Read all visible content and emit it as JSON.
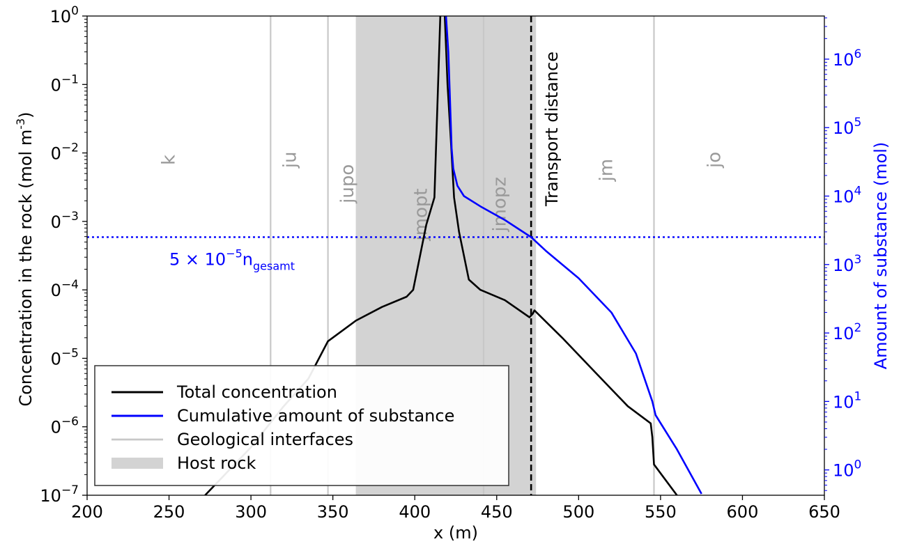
{
  "chart_data": {
    "type": "line",
    "title": "",
    "xlabel": "x (m)",
    "ylabel_left": "Concentration in the rock (mol m",
    "ylabel_left_sup": "-3",
    "ylabel_left_end": ")",
    "ylabel_right": "Amount of substance (mol)",
    "xlim": [
      200,
      650
    ],
    "x_ticks": [
      200,
      250,
      300,
      350,
      400,
      450,
      500,
      550,
      600,
      650
    ],
    "ylim_left_log10": [
      -7,
      0
    ],
    "y_left_ticks": [
      {
        "value": 0,
        "base": "10",
        "exp": "0"
      },
      {
        "value": -1,
        "base": "0",
        "exp": "−1"
      },
      {
        "value": -2,
        "base": "0",
        "exp": "−2"
      },
      {
        "value": -3,
        "base": "0",
        "exp": "−3"
      },
      {
        "value": -4,
        "base": "0",
        "exp": "−4"
      },
      {
        "value": -5,
        "base": "0",
        "exp": "−5"
      },
      {
        "value": -6,
        "base": "0",
        "exp": "−6"
      },
      {
        "value": -7,
        "base": "10",
        "exp": "−7"
      }
    ],
    "ylim_right_log10": [
      -0.37,
      6.63
    ],
    "y_right_ticks": [
      {
        "value": 0,
        "base": "10",
        "exp": "0"
      },
      {
        "value": 1,
        "base": "10",
        "exp": "1"
      },
      {
        "value": 2,
        "base": "10",
        "exp": "2"
      },
      {
        "value": 3,
        "base": "10",
        "exp": "3"
      },
      {
        "value": 4,
        "base": "10",
        "exp": "4"
      },
      {
        "value": 5,
        "base": "10",
        "exp": "5"
      },
      {
        "value": 6,
        "base": "10",
        "exp": "6"
      }
    ],
    "interfaces": [
      312,
      347,
      442,
      546
    ],
    "host_rock": [
      364,
      474
    ],
    "transport_distance": 471,
    "transport_label": "Transport distance",
    "threshold_log10_right": 3.4,
    "threshold_label": {
      "prefix": "5 × 10",
      "exp": "−5",
      "n": "n",
      "sub": "gesamt"
    },
    "layer_labels": [
      {
        "text": "k",
        "x": 250,
        "y": -2.1
      },
      {
        "text": "ju",
        "x": 324,
        "y": -2.1
      },
      {
        "text": "jupo",
        "x": 359,
        "y": -2.45
      },
      {
        "text": "jmopt",
        "x": 404,
        "y": -2.9
      },
      {
        "text": "jmopz",
        "x": 452,
        "y": -2.75
      },
      {
        "text": "jm",
        "x": 517,
        "y": -2.25
      },
      {
        "text": "jo",
        "x": 583,
        "y": -2.1
      }
    ],
    "series": [
      {
        "name": "Total concentration",
        "color": "#000000",
        "axis": "left",
        "x": [
          272,
          300,
          320,
          335,
          347,
          364,
          380,
          395,
          399,
          407,
          412,
          416,
          418,
          420,
          422,
          424,
          427,
          433,
          440,
          455,
          470,
          472,
          473,
          490,
          510,
          530,
          544,
          545,
          546,
          560
        ],
        "y": [
          -7.0,
          -6.3,
          -5.7,
          -5.3,
          -4.75,
          -4.45,
          -4.25,
          -4.1,
          -4.0,
          -3.05,
          -2.65,
          0.3,
          0.2,
          -1.0,
          -1.8,
          -2.65,
          -3.15,
          -3.85,
          -4.0,
          -4.15,
          -4.4,
          -4.35,
          -4.3,
          -4.7,
          -5.2,
          -5.7,
          -5.95,
          -6.15,
          -6.55,
          -7.0
        ]
      },
      {
        "name": "Cumulative amount of substance",
        "color": "#0000ff",
        "axis": "right",
        "x": [
          419,
          420.5,
          421.5,
          422.5,
          423.5,
          426,
          430,
          440,
          455,
          471,
          480,
          500,
          520,
          535,
          545,
          547,
          560,
          575
        ],
        "y": [
          6.65,
          6.1,
          5.4,
          4.7,
          4.4,
          4.15,
          4.0,
          3.85,
          3.65,
          3.4,
          3.2,
          2.8,
          2.3,
          1.7,
          1.0,
          0.8,
          0.3,
          -0.35
        ]
      },
      {
        "name": "Geological interfaces",
        "color": "#c8c8c8",
        "kind": "vline"
      },
      {
        "name": "Host rock",
        "color": "#d3d3d3",
        "kind": "band"
      }
    ],
    "legend_position": "lower-left"
  }
}
